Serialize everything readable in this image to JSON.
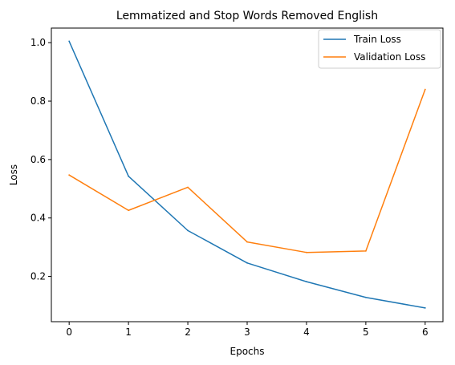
{
  "chart_data": {
    "type": "line",
    "title": "Lemmatized and Stop Words Removed English",
    "xlabel": "Epochs",
    "ylabel": "Loss",
    "x": [
      0,
      1,
      2,
      3,
      4,
      5,
      6
    ],
    "series": [
      {
        "name": "Train Loss",
        "color": "#1f77b4",
        "values": [
          1.005,
          0.543,
          0.357,
          0.246,
          0.182,
          0.128,
          0.092
        ]
      },
      {
        "name": "Validation Loss",
        "color": "#ff7f0e",
        "values": [
          0.547,
          0.426,
          0.505,
          0.318,
          0.282,
          0.287,
          0.84
        ]
      }
    ],
    "xlim": [
      -0.3,
      6.3
    ],
    "ylim": [
      0.045,
      1.05
    ],
    "xticks": [
      0,
      1,
      2,
      3,
      4,
      5,
      6
    ],
    "yticks": [
      0.2,
      0.4,
      0.6,
      0.8,
      1.0
    ],
    "ytick_labels": [
      "0.2",
      "0.4",
      "0.6",
      "0.8",
      "1.0"
    ],
    "grid": false,
    "legend": "top-right"
  }
}
